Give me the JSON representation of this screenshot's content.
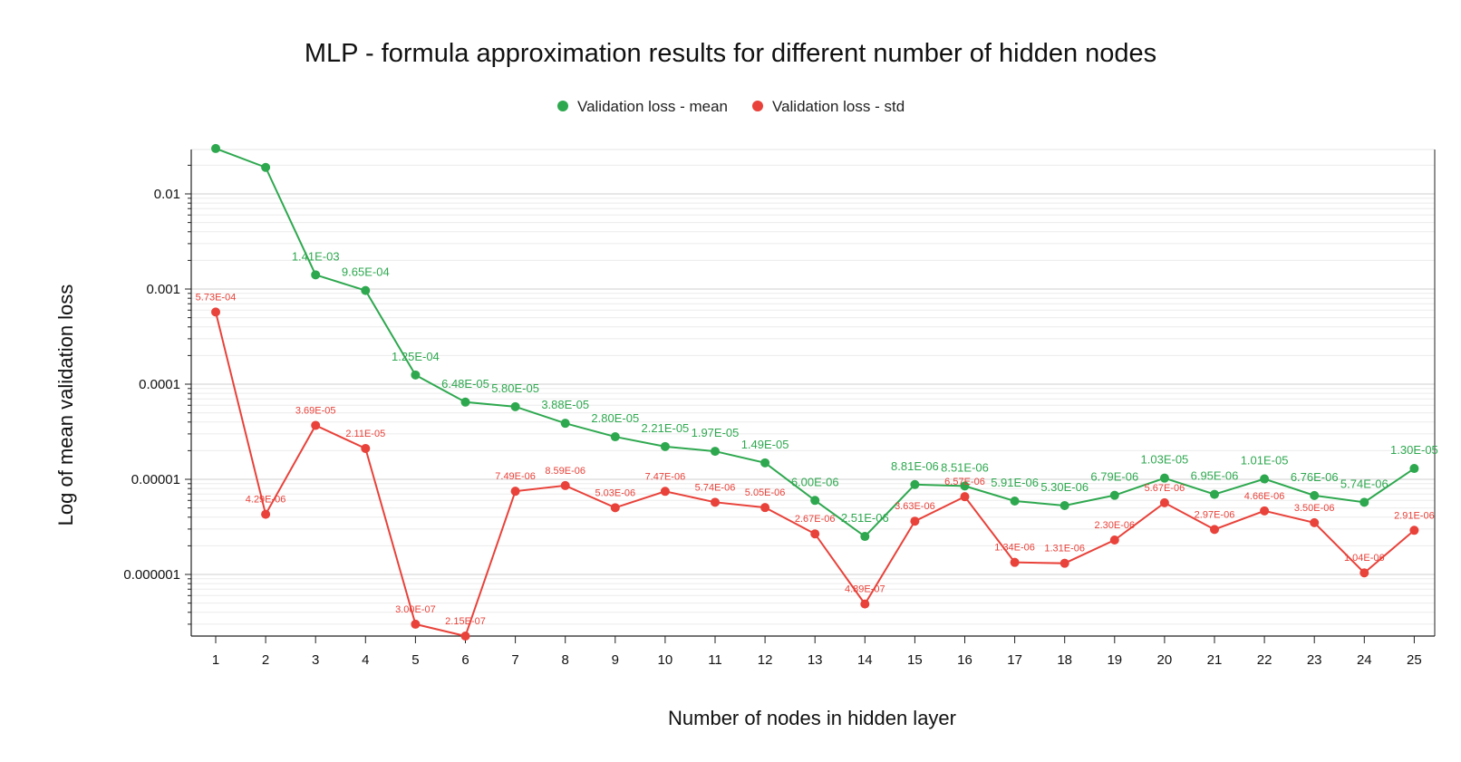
{
  "chart_data": {
    "type": "line",
    "title": "MLP - formula approximation results for different number of hidden nodes",
    "xlabel": "Number of nodes in hidden layer",
    "ylabel": "Log of mean validation loss",
    "y_scale": "log",
    "ylim": [
      4e-07,
      0.03
    ],
    "grid": true,
    "legend_position": "top",
    "x": [
      1,
      2,
      3,
      4,
      5,
      6,
      7,
      8,
      9,
      10,
      11,
      12,
      13,
      14,
      15,
      16,
      17,
      18,
      19,
      20,
      21,
      22,
      23,
      24,
      25
    ],
    "x_tick_labels": [
      "1",
      "2",
      "3",
      "4",
      "5",
      "6",
      "7",
      "8",
      "9",
      "10",
      "11",
      "12",
      "13",
      "14",
      "15",
      "16",
      "17",
      "18",
      "19",
      "20",
      "21",
      "22",
      "23",
      "24",
      "25"
    ],
    "y_tick_labels": [
      {
        "value": 0.01,
        "label": "0.01"
      },
      {
        "value": 0.001,
        "label": "0.001"
      },
      {
        "value": 0.0001,
        "label": "0.0001"
      },
      {
        "value": 1e-05,
        "label": "0.00001"
      },
      {
        "value": 1e-06,
        "label": "0.000001"
      }
    ],
    "series": [
      {
        "name": "Validation loss - mean",
        "color": "#2ea84f",
        "values": [
          0.03,
          0.019,
          0.00141,
          0.000965,
          0.000125,
          6.48e-05,
          5.8e-05,
          3.88e-05,
          2.8e-05,
          2.21e-05,
          1.97e-05,
          1.49e-05,
          6e-06,
          2.51e-06,
          8.81e-06,
          8.51e-06,
          5.91e-06,
          5.3e-06,
          6.79e-06,
          1.03e-05,
          6.95e-06,
          1.01e-05,
          6.76e-06,
          5.74e-06,
          1.3e-05
        ],
        "labels": [
          "",
          "",
          "1.41E-03",
          "9.65E-04",
          "1.25E-04",
          "6.48E-05",
          "5.80E-05",
          "3.88E-05",
          "2.80E-05",
          "2.21E-05",
          "1.97E-05",
          "1.49E-05",
          "6.00E-06",
          "2.51E-06",
          "8.81E-06",
          "8.51E-06",
          "5.91E-06",
          "5.30E-06",
          "6.79E-06",
          "1.03E-05",
          "6.95E-06",
          "1.01E-05",
          "6.76E-06",
          "5.74E-06",
          "1.30E-05"
        ]
      },
      {
        "name": "Validation loss - std",
        "color": "#e8423a",
        "values": [
          0.000573,
          4.29e-06,
          3.69e-05,
          2.11e-05,
          3e-07,
          2.15e-07,
          7.49e-06,
          8.59e-06,
          5.03e-06,
          7.47e-06,
          5.74e-06,
          5.05e-06,
          2.67e-06,
          4.89e-07,
          3.63e-06,
          6.57e-06,
          1.34e-06,
          1.31e-06,
          2.3e-06,
          5.67e-06,
          2.97e-06,
          4.66e-06,
          3.5e-06,
          1.04e-06,
          2.91e-06
        ],
        "labels": [
          "5.73E-04",
          "4.29E-06",
          "3.69E-05",
          "2.11E-05",
          "3.00E-07",
          "2.15E-07",
          "7.49E-06",
          "8.59E-06",
          "5.03E-06",
          "7.47E-06",
          "5.74E-06",
          "5.05E-06",
          "2.67E-06",
          "4.89E-07",
          "3.63E-06",
          "6.57E-06",
          "1.34E-06",
          "1.31E-06",
          "2.30E-06",
          "5.67E-06",
          "2.97E-06",
          "4.66E-06",
          "3.50E-06",
          "1.04E-06",
          "2.91E-06"
        ]
      }
    ]
  }
}
